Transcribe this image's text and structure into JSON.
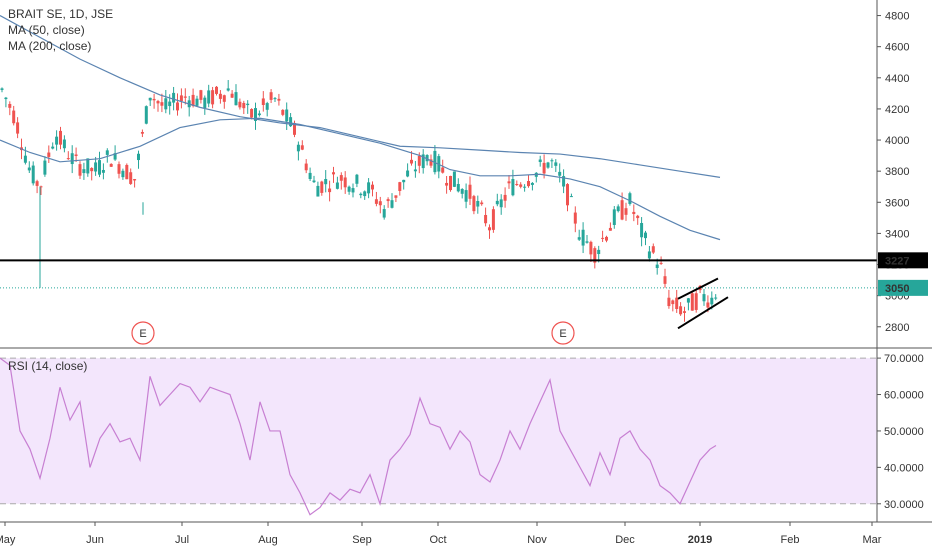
{
  "chart_data": [
    {
      "type": "candlestick",
      "title": "BRAIT SE, 1D, JSE",
      "indicators": [
        "MA (50, close)",
        "MA (200, close)"
      ],
      "y_ticks": [
        "2800",
        "3000",
        "3200",
        "3400",
        "3600",
        "3800",
        "4000",
        "4200",
        "4400",
        "4600",
        "4800"
      ],
      "ylim": [
        2670,
        4900
      ],
      "x_ticks": [
        "May",
        "Jun",
        "Jul",
        "Aug",
        "Sep",
        "Oct",
        "Nov",
        "Dec",
        "2019",
        "Feb",
        "Mar"
      ],
      "horizontal_line": {
        "label": "3227",
        "value": 3227,
        "color": "#000000"
      },
      "last_price": {
        "label": "3050",
        "value": 3050,
        "color": "#26a69a"
      },
      "earnings_markers": [
        {
          "label": "E",
          "x": "Jun 15"
        },
        {
          "label": "E",
          "x": "Nov 15"
        }
      ],
      "colors": {
        "up": "#26a69a",
        "down": "#ef5350",
        "ma50": "#5b84b1",
        "ma200": "#5b84b1",
        "rsi": "#c77fd2",
        "rsi_band": "#f3e6fc"
      },
      "ma50": [
        [
          0,
          4000
        ],
        [
          30,
          3920
        ],
        [
          60,
          3860
        ],
        [
          100,
          3880
        ],
        [
          140,
          3960
        ],
        [
          180,
          4080
        ],
        [
          220,
          4130
        ],
        [
          260,
          4140
        ],
        [
          300,
          4100
        ],
        [
          340,
          4040
        ],
        [
          380,
          3980
        ],
        [
          420,
          3900
        ],
        [
          450,
          3810
        ],
        [
          480,
          3770
        ],
        [
          510,
          3770
        ],
        [
          540,
          3780
        ],
        [
          570,
          3750
        ],
        [
          600,
          3700
        ],
        [
          630,
          3610
        ],
        [
          660,
          3510
        ],
        [
          690,
          3420
        ],
        [
          720,
          3360
        ]
      ],
      "ma200": [
        [
          0,
          4800
        ],
        [
          40,
          4660
        ],
        [
          80,
          4520
        ],
        [
          120,
          4400
        ],
        [
          160,
          4290
        ],
        [
          200,
          4210
        ],
        [
          240,
          4150
        ],
        [
          280,
          4110
        ],
        [
          320,
          4080
        ],
        [
          360,
          4020
        ],
        [
          400,
          3960
        ],
        [
          440,
          3950
        ],
        [
          480,
          3935
        ],
        [
          520,
          3920
        ],
        [
          560,
          3910
        ],
        [
          600,
          3880
        ],
        [
          640,
          3840
        ],
        [
          680,
          3800
        ],
        [
          720,
          3760
        ]
      ],
      "channel": [
        [
          [
            678,
            2980
          ],
          [
            718,
            3110
          ]
        ],
        [
          [
            678,
            2790
          ],
          [
            728,
            2990
          ]
        ]
      ]
    },
    {
      "type": "line",
      "title": "RSI (14, close)",
      "y_ticks": [
        "30.0000",
        "40.0000",
        "50.0000",
        "60.0000",
        "70.0000"
      ],
      "ylim": [
        25,
        72.5
      ],
      "band": [
        30,
        70
      ],
      "values": [
        [
          0,
          70
        ],
        [
          10,
          68
        ],
        [
          20,
          50
        ],
        [
          30,
          45
        ],
        [
          40,
          37
        ],
        [
          50,
          48
        ],
        [
          60,
          62
        ],
        [
          70,
          53
        ],
        [
          80,
          58
        ],
        [
          90,
          40
        ],
        [
          100,
          48
        ],
        [
          110,
          52
        ],
        [
          120,
          47
        ],
        [
          130,
          48
        ],
        [
          140,
          42
        ],
        [
          150,
          65
        ],
        [
          160,
          57
        ],
        [
          170,
          60
        ],
        [
          180,
          63
        ],
        [
          190,
          62
        ],
        [
          200,
          58
        ],
        [
          210,
          62
        ],
        [
          220,
          61
        ],
        [
          230,
          60
        ],
        [
          240,
          52
        ],
        [
          250,
          42
        ],
        [
          260,
          58
        ],
        [
          270,
          50
        ],
        [
          280,
          50
        ],
        [
          290,
          38
        ],
        [
          300,
          33
        ],
        [
          310,
          27
        ],
        [
          320,
          29
        ],
        [
          330,
          33
        ],
        [
          340,
          31
        ],
        [
          350,
          34
        ],
        [
          360,
          33
        ],
        [
          370,
          38
        ],
        [
          380,
          30
        ],
        [
          390,
          42
        ],
        [
          400,
          45
        ],
        [
          410,
          49
        ],
        [
          420,
          59
        ],
        [
          430,
          52
        ],
        [
          440,
          51
        ],
        [
          450,
          45
        ],
        [
          460,
          50
        ],
        [
          470,
          47
        ],
        [
          480,
          38
        ],
        [
          490,
          36
        ],
        [
          500,
          42
        ],
        [
          510,
          50
        ],
        [
          520,
          45
        ],
        [
          530,
          52
        ],
        [
          540,
          58
        ],
        [
          550,
          64
        ],
        [
          560,
          50
        ],
        [
          570,
          45
        ],
        [
          580,
          40
        ],
        [
          590,
          35
        ],
        [
          600,
          44
        ],
        [
          610,
          38
        ],
        [
          620,
          48
        ],
        [
          630,
          50
        ],
        [
          640,
          45
        ],
        [
          650,
          42
        ],
        [
          660,
          35
        ],
        [
          670,
          33
        ],
        [
          680,
          30
        ],
        [
          690,
          36
        ],
        [
          700,
          42
        ],
        [
          710,
          45
        ],
        [
          716,
          46
        ]
      ]
    }
  ]
}
